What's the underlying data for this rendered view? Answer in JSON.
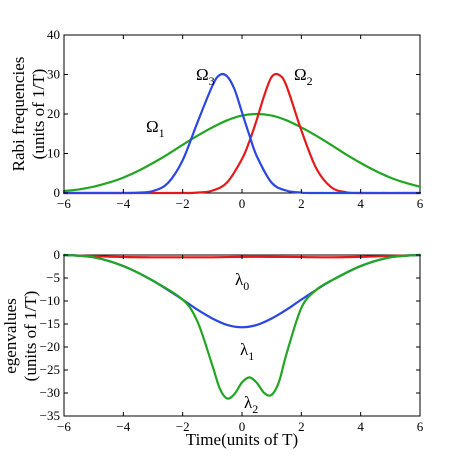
{
  "chart_data": [
    {
      "type": "line",
      "xlim": [
        -6,
        6
      ],
      "ylim": [
        0,
        40
      ],
      "xticks": [
        -6,
        -4,
        -2,
        0,
        2,
        4,
        6
      ],
      "yticks": [
        0,
        10,
        20,
        30,
        40
      ],
      "xlabel": "",
      "ylabel_line1": "Rabi frequencies",
      "ylabel_line2": "(units of 1/T)",
      "grid": false,
      "series": [
        {
          "symbol": "Ω",
          "sub": "1",
          "color": "#22a522",
          "x": [
            -6,
            -5.5,
            -5,
            -4.5,
            -4,
            -3.5,
            -3,
            -2.5,
            -2,
            -1.5,
            -1,
            -0.5,
            0,
            0.5,
            1,
            1.5,
            2,
            2.5,
            3,
            3.5,
            4,
            4.5,
            5,
            5.5,
            6
          ],
          "values": [
            0.5,
            0.9,
            1.6,
            2.6,
            3.9,
            5.6,
            7.6,
            9.8,
            12.2,
            14.5,
            16.6,
            18.4,
            19.6,
            20,
            19.6,
            18.4,
            16.6,
            14.5,
            12.2,
            9.8,
            7.6,
            5.6,
            3.9,
            2.6,
            1.6
          ]
        },
        {
          "symbol": "Ω",
          "sub": "2",
          "color": "#e31a1a",
          "x": [
            -6,
            -3,
            -2,
            -1.5,
            -1,
            -0.5,
            0,
            0.25,
            0.5,
            0.75,
            1,
            1.25,
            1.5,
            2,
            2.5,
            3,
            3.5,
            4,
            6
          ],
          "values": [
            0,
            0,
            0,
            0.1,
            0.6,
            2.7,
            8.6,
            13.1,
            18.6,
            24.7,
            29.4,
            29.9,
            27.1,
            15.9,
            6.3,
            1.5,
            0.2,
            0,
            0
          ]
        },
        {
          "symbol": "Ω",
          "sub": "3",
          "color": "#2c46e0",
          "x": [
            -6,
            -4,
            -3.5,
            -3,
            -2.5,
            -2,
            -1.5,
            -1,
            -0.75,
            -0.5,
            -0.25,
            0,
            0.25,
            0.5,
            1,
            1.5,
            2,
            2.5,
            6
          ],
          "values": [
            0,
            0,
            0.1,
            0.5,
            2.5,
            8.3,
            17.9,
            27.1,
            29.9,
            29.5,
            26.2,
            20.4,
            14.6,
            9.3,
            2.6,
            0.6,
            0.1,
            0,
            0
          ]
        }
      ],
      "annotations": [
        {
          "symbol": "Ω",
          "sub": "3"
        },
        {
          "symbol": "Ω",
          "sub": "2"
        },
        {
          "symbol": "Ω",
          "sub": "1"
        }
      ]
    },
    {
      "type": "line",
      "xlim": [
        -6,
        6
      ],
      "ylim": [
        -35,
        0
      ],
      "xticks": [
        -6,
        -4,
        -2,
        0,
        2,
        4,
        6
      ],
      "yticks": [
        0,
        -5,
        -10,
        -15,
        -20,
        -25,
        -30,
        -35
      ],
      "xlabel": "Time(units of T)",
      "ylabel_line1": "egenvalues",
      "ylabel_line2": "(units of 1/T)",
      "grid": false,
      "series": [
        {
          "symbol": "λ",
          "sub": "0",
          "color": "#e31a1a",
          "x": [
            -6,
            -4.8,
            -4,
            -3,
            -2,
            -1,
            0,
            1,
            2,
            3,
            4,
            4.5,
            6
          ],
          "values": [
            0,
            -0.3,
            -0.45,
            -0.5,
            -0.5,
            -0.5,
            -0.4,
            -0.4,
            -0.45,
            -0.5,
            -0.4,
            -0.3,
            0
          ]
        },
        {
          "symbol": "λ",
          "sub": "1",
          "color": "#2c46e0",
          "x": [
            -6,
            -5,
            -4,
            -3,
            -2,
            -1.5,
            -1,
            -0.5,
            0,
            0.5,
            1,
            1.5,
            2,
            2.5,
            3,
            4,
            5,
            6
          ],
          "values": [
            0,
            -0.5,
            -2.4,
            -5.6,
            -9.7,
            -11.9,
            -13.8,
            -15.2,
            -15.7,
            -15.2,
            -13.8,
            -11.9,
            -9.7,
            -7.6,
            -5.6,
            -2.4,
            -0.5,
            0
          ]
        },
        {
          "symbol": "λ",
          "sub": "2",
          "color": "#22a522",
          "x": [
            -6,
            -5,
            -4,
            -3,
            -2,
            -1.5,
            -1,
            -0.75,
            -0.5,
            -0.25,
            0,
            0.25,
            0.5,
            0.75,
            1,
            1.25,
            1.5,
            2,
            2.5,
            3,
            4,
            5,
            6
          ],
          "values": [
            0,
            -0.5,
            -2.4,
            -5.6,
            -9.7,
            -14.5,
            -24,
            -29,
            -31.2,
            -30.2,
            -27.7,
            -26.6,
            -27.8,
            -30,
            -30.4,
            -27.5,
            -21.5,
            -11.5,
            -7.6,
            -5.6,
            -2.4,
            -0.5,
            0
          ]
        }
      ],
      "annotations": [
        {
          "symbol": "λ",
          "sub": "0"
        },
        {
          "symbol": "λ",
          "sub": "1"
        },
        {
          "symbol": "λ",
          "sub": "2"
        }
      ]
    }
  ]
}
